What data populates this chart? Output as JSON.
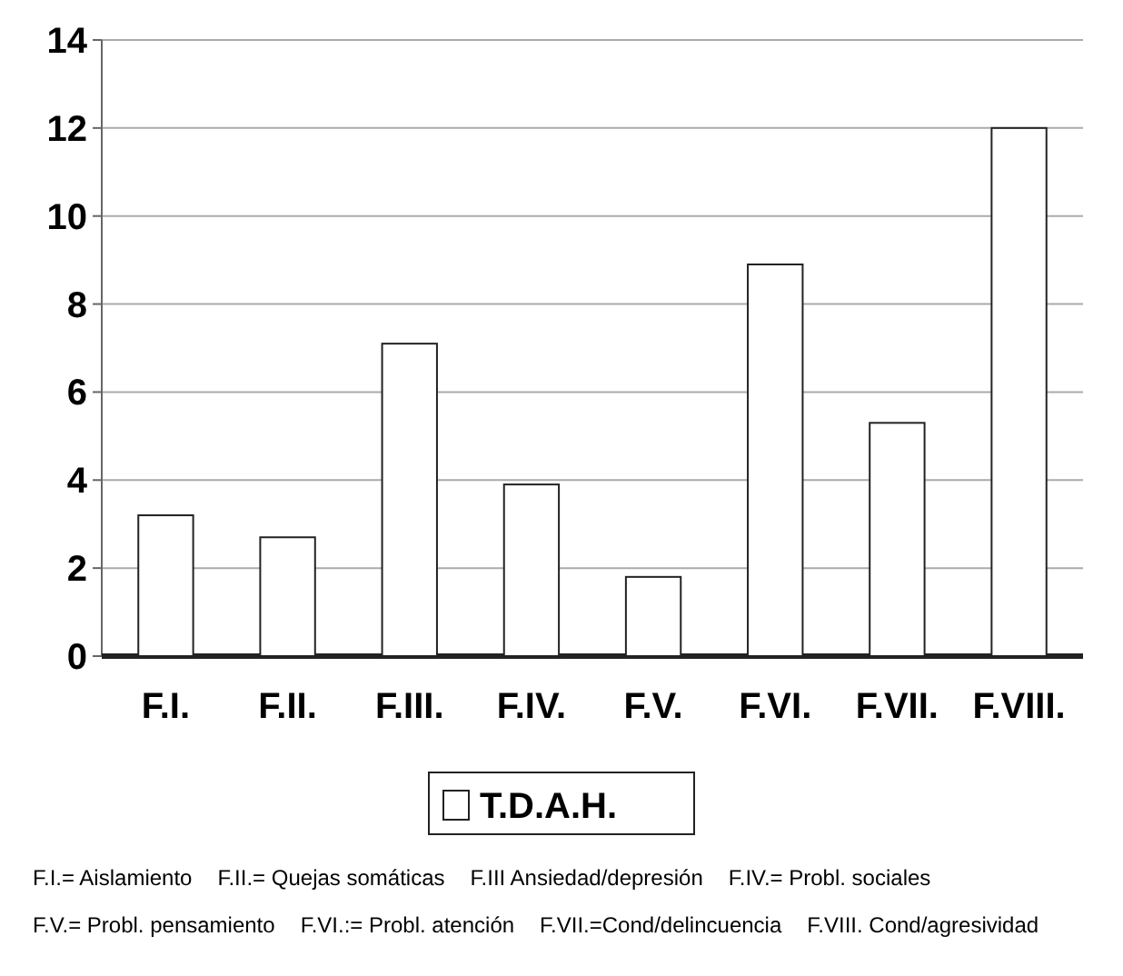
{
  "chart_data": {
    "type": "bar",
    "categories": [
      "F.I.",
      "F.II.",
      "F.III.",
      "F.IV.",
      "F.V.",
      "F.VI.",
      "F.VII.",
      "F.VIII."
    ],
    "series": [
      {
        "name": "T.D.A.H.",
        "color": "#ffffff",
        "values": [
          3.2,
          2.7,
          7.1,
          3.9,
          1.8,
          8.9,
          5.3,
          12
        ]
      }
    ],
    "ylim": [
      0,
      14
    ],
    "yticks": [
      0,
      2,
      4,
      6,
      8,
      10,
      12,
      14
    ],
    "grid": "y",
    "legend": "bottom",
    "annotations": [
      "F.I.= Aislamiento",
      "F.II.= Quejas somáticas",
      "F.III Ansiedad/depresión",
      "F.IV.= Probl. sociales",
      "F.V.= Probl. pensamiento",
      "F.VI.:= Probl. atención",
      "F.VII.=Cond/delincuencia",
      "F.VIII. Cond/agresividad"
    ]
  }
}
